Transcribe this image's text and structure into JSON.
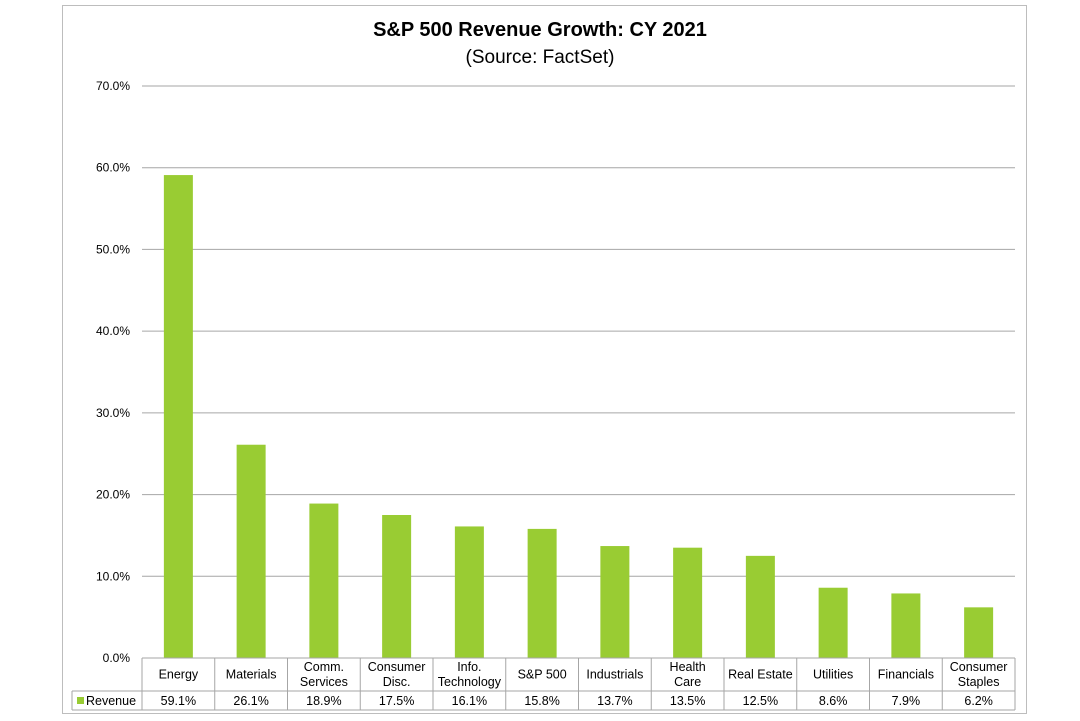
{
  "chart_data": {
    "type": "bar",
    "title": "S&P 500 Revenue Growth: CY 2021",
    "subtitle": "(Source: FactSet)",
    "categories": [
      [
        "Energy"
      ],
      [
        "Materials"
      ],
      [
        "Comm.",
        "Services"
      ],
      [
        "Consumer",
        "Disc."
      ],
      [
        "Info.",
        "Technology"
      ],
      [
        "S&P 500"
      ],
      [
        "Industrials"
      ],
      [
        "Health",
        "Care"
      ],
      [
        "Real Estate"
      ],
      [
        "Utilities"
      ],
      [
        "Financials"
      ],
      [
        "Consumer",
        "Staples"
      ]
    ],
    "series": [
      {
        "name": "Revenue",
        "values": [
          59.1,
          26.1,
          18.9,
          17.5,
          16.1,
          15.8,
          13.7,
          13.5,
          12.5,
          8.6,
          7.9,
          6.2
        ],
        "labels": [
          "59.1%",
          "26.1%",
          "18.9%",
          "17.5%",
          "16.1%",
          "15.8%",
          "13.7%",
          "13.5%",
          "12.5%",
          "8.6%",
          "7.9%",
          "6.2%"
        ],
        "color": "#99cc33"
      }
    ],
    "ylim": [
      0,
      70
    ],
    "yticks": [
      "0.0%",
      "10.0%",
      "20.0%",
      "30.0%",
      "40.0%",
      "50.0%",
      "60.0%",
      "70.0%"
    ],
    "grid": true,
    "legend": "data-table-row",
    "xlabel": "",
    "ylabel": ""
  },
  "colors": {
    "gridline": "#a6a6a6",
    "border": "#bdbdbd"
  }
}
